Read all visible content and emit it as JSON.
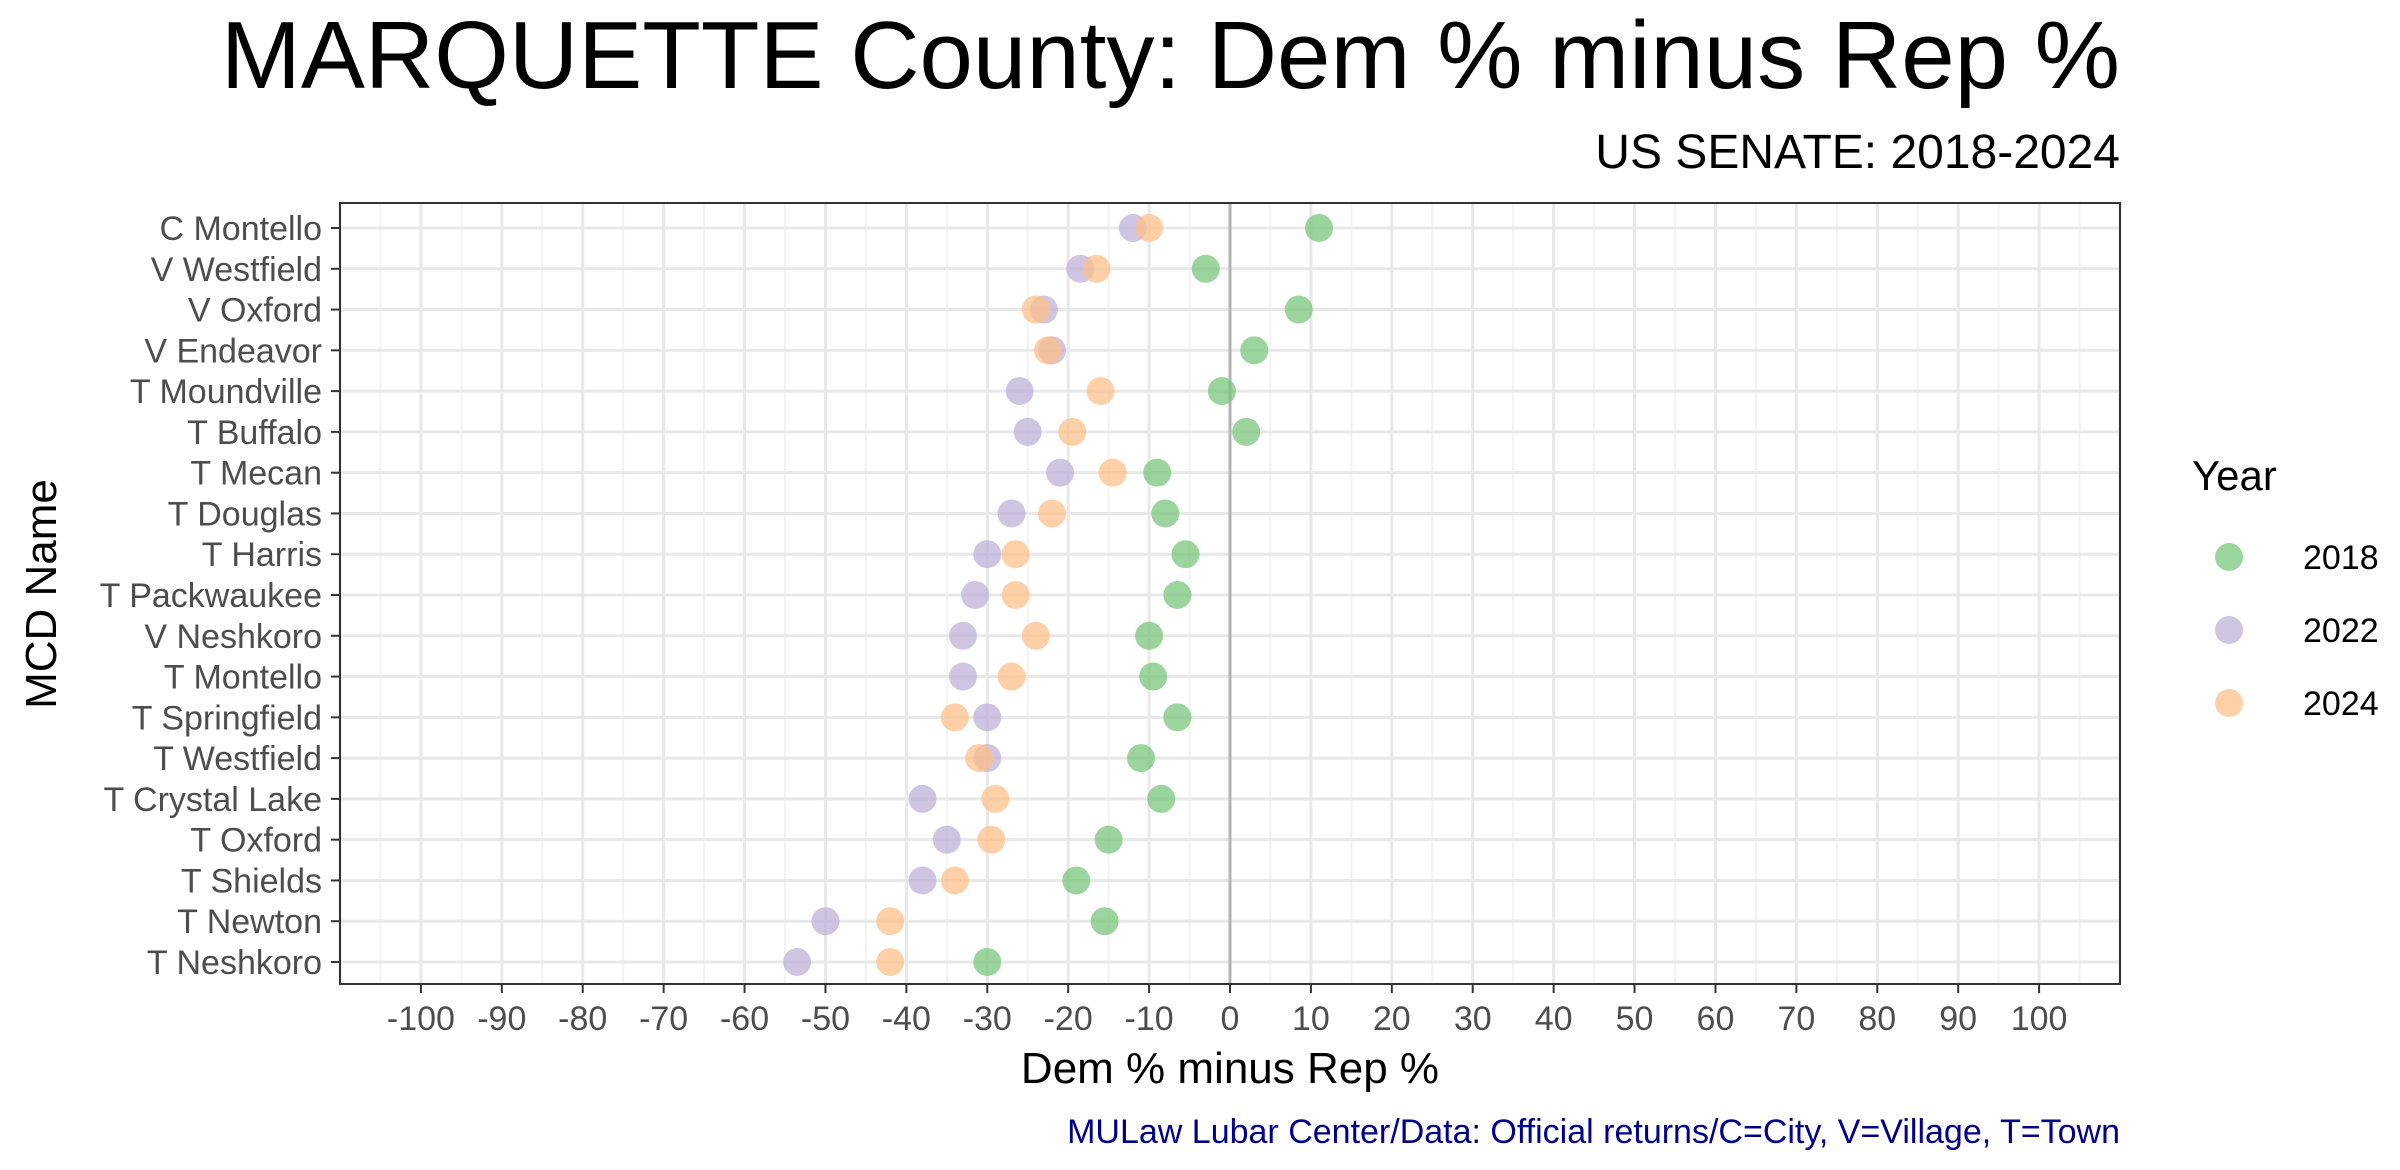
{
  "chart_data": {
    "type": "scatter",
    "title": "MARQUETTE County: Dem % minus Rep %",
    "subtitle": "US SENATE: 2018-2024",
    "xlabel": "Dem % minus Rep %",
    "ylabel": "MCD Name",
    "caption": "MULaw Lubar Center/Data: Official returns/C=City, V=Village, T=Town",
    "xlim": [
      -110,
      110
    ],
    "x_ticks": [
      -100,
      -90,
      -80,
      -70,
      -60,
      -50,
      -40,
      -30,
      -20,
      -10,
      0,
      10,
      20,
      30,
      40,
      50,
      60,
      70,
      80,
      90,
      100
    ],
    "x_tick_labels": [
      "-100",
      "-90",
      "-80",
      "-70",
      "-60",
      "-50",
      "-40",
      "-30",
      "-20",
      "-10",
      "0",
      "10",
      "20",
      "30",
      "40",
      "50",
      "60",
      "70",
      "80",
      "90",
      "100"
    ],
    "grid": true,
    "reference_line_x": 0,
    "legend": {
      "title": "Year",
      "position": "right"
    },
    "categories": [
      "C Montello",
      "V Westfield",
      "V Oxford",
      "V Endeavor",
      "T Moundville",
      "T Buffalo",
      "T Mecan",
      "T Douglas",
      "T Harris",
      "T Packwaukee",
      "V Neshkoro",
      "T Montello",
      "T Springfield",
      "T Westfield",
      "T Crystal Lake",
      "T Oxford",
      "T Shields",
      "T Newton",
      "T Neshkoro"
    ],
    "series": [
      {
        "name": "2018",
        "color": "#74c476",
        "values": [
          11,
          -3,
          8.5,
          3,
          -1,
          2,
          -9,
          -8,
          -5.5,
          -6.5,
          -10,
          -9.5,
          -6.5,
          -11,
          -8.5,
          -15,
          -19,
          -15.5,
          -30
        ]
      },
      {
        "name": "2022",
        "color": "#bcaed8",
        "values": [
          -12,
          -18.5,
          -23,
          -22,
          -26,
          -25,
          -21,
          -27,
          -30,
          -31.5,
          -33,
          -33,
          -30,
          -30,
          -38,
          -35,
          -38,
          -50,
          -53.5
        ]
      },
      {
        "name": "2024",
        "color": "#fdbe85",
        "values": [
          -10,
          -16.5,
          -24,
          -22.5,
          -16,
          -19.5,
          -14.5,
          -22,
          -26.5,
          -26.5,
          -24,
          -27,
          -34,
          -31,
          -29,
          -29.5,
          -34,
          -42,
          -42
        ]
      }
    ]
  }
}
